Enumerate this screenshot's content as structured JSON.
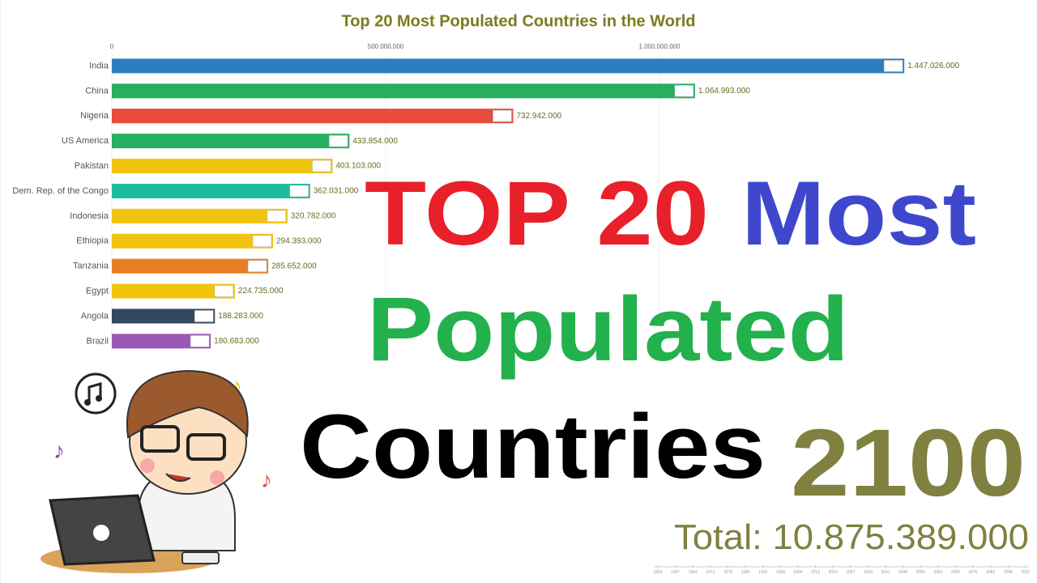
{
  "chart_data": {
    "type": "bar",
    "orientation": "horizontal",
    "title": "Top 20 Most Populated Countries in the World",
    "categories": [
      "India",
      "China",
      "Nigeria",
      "US America",
      "Pakistan",
      "Dem. Rep. of the Congo",
      "Indonesia",
      "Ethiopia",
      "Tanzania",
      "Egypt",
      "Angola",
      "Brazil"
    ],
    "values": [
      1447026000,
      1064993000,
      732942000,
      433854000,
      403103000,
      362031000,
      320782000,
      294393000,
      285652000,
      224735000,
      188283000,
      180683000
    ],
    "value_labels": [
      "1.447.026.000",
      "1.064.993.000",
      "732.942.000",
      "433.854.000",
      "403.103.000",
      "362.031.000",
      "320.782.000",
      "294.393.000",
      "285.652.000",
      "224.735.000",
      "188.283.000",
      "180.683.000"
    ],
    "colors": [
      "#2e7ebf",
      "#27ae60",
      "#e74c3c",
      "#27ae60",
      "#f1c40f",
      "#1abc9c",
      "#f1c40f",
      "#f1c40f",
      "#e67e22",
      "#f1c40f",
      "#34495e",
      "#9b59b6"
    ],
    "xlim": [
      0,
      1500000000
    ],
    "xticks": [
      0,
      {
        "value": 500000000,
        "label": "500.000.000"
      },
      {
        "value": 1000000000,
        "label": "1.000.000.000"
      }
    ],
    "grid": true,
    "year": "2100",
    "total": "Total: 10.875.389.000",
    "timeline_ticks": [
      1950,
      1957,
      1964,
      1971,
      1978,
      1985,
      1992,
      1999,
      2006,
      2013,
      2020,
      2027,
      2034,
      2041,
      2048,
      2055,
      2062,
      2069,
      2076,
      2083,
      2090,
      2097
    ]
  },
  "overlay": {
    "line1a": "TOP 20",
    "line1b": "Most",
    "line2": "Populated",
    "line3": "Countries"
  }
}
